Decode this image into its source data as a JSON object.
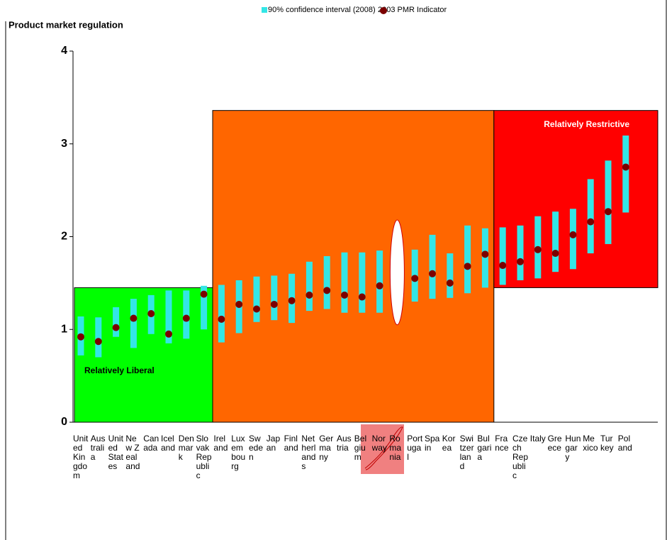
{
  "chart_data": {
    "type": "dot-range",
    "title": "Product market regulation",
    "categories": [
      "United Kingdom",
      "Australia",
      "United States",
      "New Zealand",
      "Canada",
      "Iceland",
      "Denmark",
      "Slovak Republic",
      "Ireland",
      "Luxembourg",
      "Sweden",
      "Japan",
      "Finland",
      "Netherlands",
      "Germany",
      "Austria",
      "Belgium",
      "Norway",
      "Romania",
      "Portugal",
      "Spain",
      "Korea",
      "Switzerland",
      "Bulgaria",
      "France",
      "Czech Republic",
      "Italy",
      "Greece",
      "Hungary",
      "Mexico",
      "Turkey",
      "Poland"
    ],
    "series": [
      {
        "name": "90% confidence interval (2008)",
        "color": "#33e6e6",
        "low": [
          0.72,
          0.7,
          0.92,
          0.8,
          0.95,
          0.85,
          0.9,
          1.0,
          0.86,
          0.96,
          1.08,
          1.1,
          1.07,
          1.2,
          1.22,
          1.18,
          1.18,
          1.18,
          null,
          1.3,
          1.33,
          1.34,
          1.39,
          1.45,
          1.48,
          1.53,
          1.55,
          1.62,
          1.65,
          1.82,
          1.92,
          2.26
        ],
        "high": [
          1.14,
          1.13,
          1.24,
          1.33,
          1.37,
          1.42,
          1.42,
          1.47,
          1.48,
          1.53,
          1.57,
          1.58,
          1.6,
          1.73,
          1.79,
          1.83,
          1.83,
          1.85,
          null,
          1.86,
          2.02,
          1.82,
          2.12,
          2.09,
          2.1,
          2.12,
          2.22,
          2.27,
          2.3,
          2.62,
          2.82,
          3.09
        ]
      },
      {
        "name": "2003 PMR Indicator",
        "color": "#7b0000",
        "values": [
          0.92,
          0.87,
          1.02,
          1.12,
          1.17,
          0.95,
          1.12,
          1.38,
          1.11,
          1.27,
          1.22,
          1.27,
          1.31,
          1.37,
          1.42,
          1.37,
          1.35,
          1.47,
          null,
          1.55,
          1.6,
          1.5,
          1.68,
          1.81,
          1.69,
          1.73,
          1.86,
          1.82,
          2.02,
          2.16,
          2.27,
          2.75
        ]
      }
    ],
    "ylim": [
      0,
      4
    ],
    "yticks": [
      0,
      1,
      2,
      3,
      4
    ],
    "regions": [
      {
        "label": "Relatively Liberal",
        "color": "#00ff00",
        "from": "United Kingdom",
        "to": "Slovak Republic",
        "ylim": [
          0,
          1.45
        ],
        "label_corner": "bottom-left"
      },
      {
        "color": "#ff6600",
        "from": "Ireland",
        "to": "Bulgaria",
        "ylim": [
          0,
          3.36
        ]
      },
      {
        "label": "Relatively Restrictive",
        "color": "#ff0000",
        "from": "France",
        "to": "Poland",
        "ylim": [
          1.45,
          3.36
        ],
        "label_corner": "top-right"
      }
    ]
  }
}
